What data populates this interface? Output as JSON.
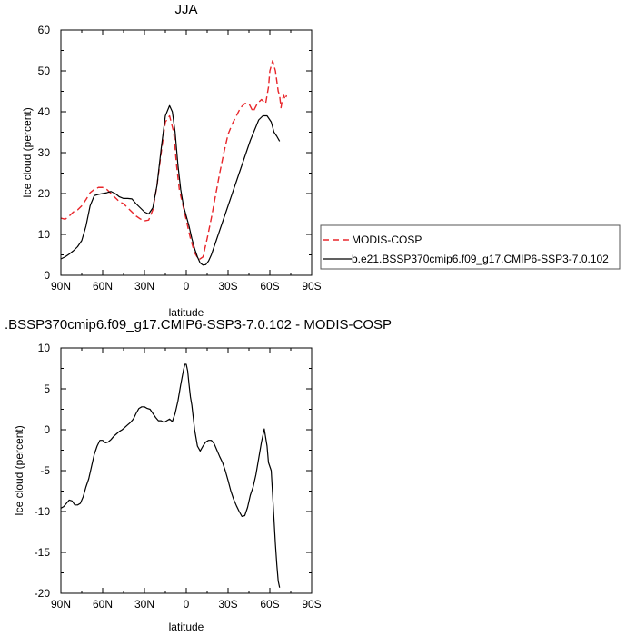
{
  "chart_data": [
    {
      "type": "line",
      "title": "JJA",
      "xlabel": "latitude",
      "ylabel": "Ice cloud (percent)",
      "xlim": [
        90,
        -90
      ],
      "ylim": [
        0,
        60
      ],
      "x_ticks": [
        90,
        60,
        30,
        0,
        -30,
        -60,
        -90
      ],
      "x_tick_labels": [
        "90N",
        "60N",
        "30N",
        "0",
        "30S",
        "60S",
        "90S"
      ],
      "y_ticks": [
        0,
        10,
        20,
        30,
        40,
        50,
        60
      ],
      "y_tick_labels": [
        "0",
        "10",
        "20",
        "30",
        "40",
        "50",
        "60"
      ],
      "grid": false,
      "legend": {
        "placement": "right",
        "entries": [
          "MODIS-COSP",
          "b.e21.BSSP370cmip6.f09_g17.CMIP6-SSP3-7.0.102"
        ]
      },
      "series": [
        {
          "name": "MODIS-COSP",
          "color": "#e8252a",
          "dash": true,
          "x": [
            90,
            87,
            84,
            81,
            78,
            75,
            72,
            69,
            66,
            63,
            60,
            57,
            54,
            51,
            48,
            45,
            42,
            39,
            36,
            33,
            30,
            27,
            24,
            21,
            18,
            15,
            12,
            9,
            7,
            5,
            3,
            1,
            -1,
            -3,
            -6,
            -9,
            -12,
            -15,
            -18,
            -21,
            -24,
            -27,
            -30,
            -33,
            -36,
            -39,
            -42,
            -45,
            -48,
            -51,
            -54,
            -57,
            -58,
            -59,
            -60,
            -62,
            -64,
            -66,
            -67,
            -68,
            -69,
            -70,
            -71,
            -72
          ],
          "y": [
            14,
            13.7,
            14.5,
            15.5,
            16,
            17,
            18.5,
            20.2,
            21,
            21.5,
            21.5,
            21,
            20,
            19,
            18,
            17.5,
            16.5,
            15.5,
            14.5,
            13.8,
            13.3,
            13.5,
            16,
            22,
            30,
            37.5,
            39,
            35,
            27,
            21,
            18,
            15,
            12,
            9,
            5.5,
            3.8,
            4.5,
            9,
            14,
            19.5,
            25,
            30,
            34.5,
            37,
            39,
            41,
            42,
            42,
            40,
            42,
            43,
            42,
            44,
            46,
            50,
            52.5,
            50,
            45,
            44,
            41,
            43,
            44,
            43,
            44
          ]
        },
        {
          "name": "b.e21.BSSP370cmip6.f09_g17.CMIP6-SSP3-7.0.102",
          "color": "#000000",
          "dash": false,
          "x": [
            90,
            87,
            84,
            81,
            78,
            75,
            72,
            69,
            66,
            63,
            60,
            57,
            54,
            51,
            48,
            45,
            42,
            39,
            36,
            33,
            30,
            27,
            24,
            21,
            18,
            15,
            12,
            10,
            8,
            6,
            4,
            2,
            0,
            -2,
            -4,
            -6,
            -8,
            -10,
            -12,
            -14,
            -16,
            -18,
            -20,
            -22,
            -25,
            -28,
            -31,
            -34,
            -37,
            -40,
            -43,
            -46,
            -49,
            -52,
            -55,
            -58,
            -61,
            -63,
            -65,
            -67
          ],
          "y": [
            4,
            4.5,
            5.2,
            6,
            7,
            8.5,
            12,
            17,
            19.5,
            19.8,
            20,
            20.2,
            20.5,
            20,
            19.2,
            18.8,
            18.8,
            18.7,
            17.5,
            16.5,
            15.5,
            15,
            16.5,
            22,
            31,
            39,
            41.5,
            40,
            35,
            27,
            21,
            17,
            14.5,
            12,
            9,
            6.5,
            4.5,
            3,
            2.5,
            2.6,
            3.5,
            5,
            7,
            9,
            12,
            15,
            18,
            21,
            24,
            27,
            30,
            33,
            35.5,
            38,
            39,
            39,
            37.5,
            35,
            34,
            32.8
          ]
        }
      ]
    },
    {
      "type": "line",
      "title": ".BSSP370cmip6.f09_g17.CMIP6-SSP3-7.0.102 - MODIS-COSP",
      "xlabel": "latitude",
      "ylabel": "Ice cloud (percent)",
      "xlim": [
        90,
        -90
      ],
      "ylim": [
        -20,
        10
      ],
      "x_ticks": [
        90,
        60,
        30,
        0,
        -30,
        -60,
        -90
      ],
      "x_tick_labels": [
        "90N",
        "60N",
        "30N",
        "0",
        "30S",
        "60S",
        "90S"
      ],
      "y_ticks": [
        -20,
        -15,
        -10,
        -5,
        0,
        5,
        10
      ],
      "y_tick_labels": [
        "-20",
        "-15",
        "-10",
        "-5",
        "0",
        "5",
        "10"
      ],
      "grid": false,
      "series": [
        {
          "color": "#000000",
          "dash": false,
          "x": [
            90,
            88,
            86,
            84,
            82,
            80,
            78,
            76,
            74,
            72,
            70,
            68,
            66,
            64,
            62,
            60,
            58,
            56,
            54,
            52,
            50,
            48,
            46,
            44,
            42,
            40,
            38,
            36,
            34,
            32,
            30,
            28,
            26,
            24,
            22,
            20,
            18,
            16,
            14,
            12,
            10,
            8,
            6,
            4,
            2,
            1,
            0,
            -1,
            -2,
            -3,
            -4,
            -5,
            -6,
            -8,
            -10,
            -12,
            -14,
            -16,
            -18,
            -20,
            -22,
            -24,
            -26,
            -28,
            -30,
            -32,
            -34,
            -36,
            -38,
            -40,
            -42,
            -44,
            -46,
            -48,
            -50,
            -52,
            -54,
            -56,
            -58,
            -59,
            -60,
            -61,
            -62,
            -63,
            -64,
            -65,
            -66,
            -67
          ],
          "y": [
            -9.6,
            -9.4,
            -9,
            -8.6,
            -8.7,
            -9.2,
            -9.2,
            -9,
            -8.2,
            -7,
            -6,
            -4.5,
            -3,
            -2,
            -1.3,
            -1.3,
            -1.6,
            -1.5,
            -1.2,
            -0.8,
            -0.5,
            -0.2,
            0,
            0.3,
            0.6,
            0.9,
            1.3,
            2,
            2.6,
            2.8,
            2.8,
            2.6,
            2.5,
            2,
            1.5,
            1.1,
            1.1,
            0.9,
            1.1,
            1.3,
            1,
            2,
            3.5,
            5.5,
            7.3,
            8,
            8,
            7.2,
            5.5,
            4,
            3,
            1.5,
            0,
            -2,
            -2.6,
            -2,
            -1.5,
            -1.3,
            -1.3,
            -1.7,
            -2.5,
            -3.3,
            -4,
            -5,
            -6.2,
            -7.5,
            -8.5,
            -9.3,
            -10,
            -10.6,
            -10.5,
            -9.5,
            -8,
            -7,
            -5.5,
            -3.5,
            -1.5,
            0.1,
            -2,
            -4,
            -4.5,
            -5,
            -8,
            -11,
            -14,
            -16.5,
            -18.5,
            -19.3
          ]
        }
      ]
    }
  ]
}
